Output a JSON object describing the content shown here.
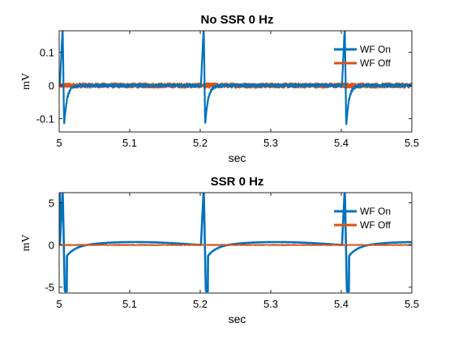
{
  "chart_data": [
    {
      "type": "line",
      "title": "No SSR 0 Hz",
      "xlabel": "sec",
      "ylabel": "mV",
      "xlim": [
        5,
        5.5
      ],
      "ylim": [
        -0.14,
        0.165
      ],
      "xticks": [
        5,
        5.1,
        5.2,
        5.3,
        5.4,
        5.5
      ],
      "xtick_labels": [
        "5",
        "5.1",
        "5.2",
        "5.3",
        "5.4",
        "5.5"
      ],
      "yticks": [
        -0.1,
        0,
        0.1
      ],
      "ytick_labels": [
        "-0.1",
        "0",
        "0.1"
      ],
      "grid": false,
      "legend": "top-right",
      "spike_times": [
        5.005,
        5.205,
        5.405
      ],
      "series": [
        {
          "name": "WF On",
          "color": "#0072BD",
          "baseline": 0,
          "spike_peak": 0.165,
          "spike_trough": -0.12,
          "noise": 0.004
        },
        {
          "name": "WF Off",
          "color": "#D95319",
          "baseline": 0,
          "noise": 0.007
        }
      ]
    },
    {
      "type": "line",
      "title": "SSR 0 Hz",
      "xlabel": "sec",
      "ylabel": "mV",
      "xlim": [
        5,
        5.5
      ],
      "ylim": [
        -5.7,
        6.2
      ],
      "xticks": [
        5,
        5.1,
        5.2,
        5.3,
        5.4,
        5.5
      ],
      "xtick_labels": [
        "5",
        "5.1",
        "5.2",
        "5.3",
        "5.4",
        "5.5"
      ],
      "yticks": [
        -5,
        0,
        5
      ],
      "ytick_labels": [
        "-5",
        "0",
        "5"
      ],
      "grid": false,
      "legend": "top-right",
      "spike_times": [
        5.005,
        5.205,
        5.405
      ],
      "series": [
        {
          "name": "WF On",
          "color": "#0072BD",
          "baseline": 0,
          "spike_peak": 6.2,
          "spike_trough": -5.5,
          "undershoot": -1.3,
          "slow_wave_peak": 0.35
        },
        {
          "name": "WF Off",
          "color": "#D95319",
          "baseline": 0,
          "noise": 0.05
        }
      ]
    }
  ]
}
